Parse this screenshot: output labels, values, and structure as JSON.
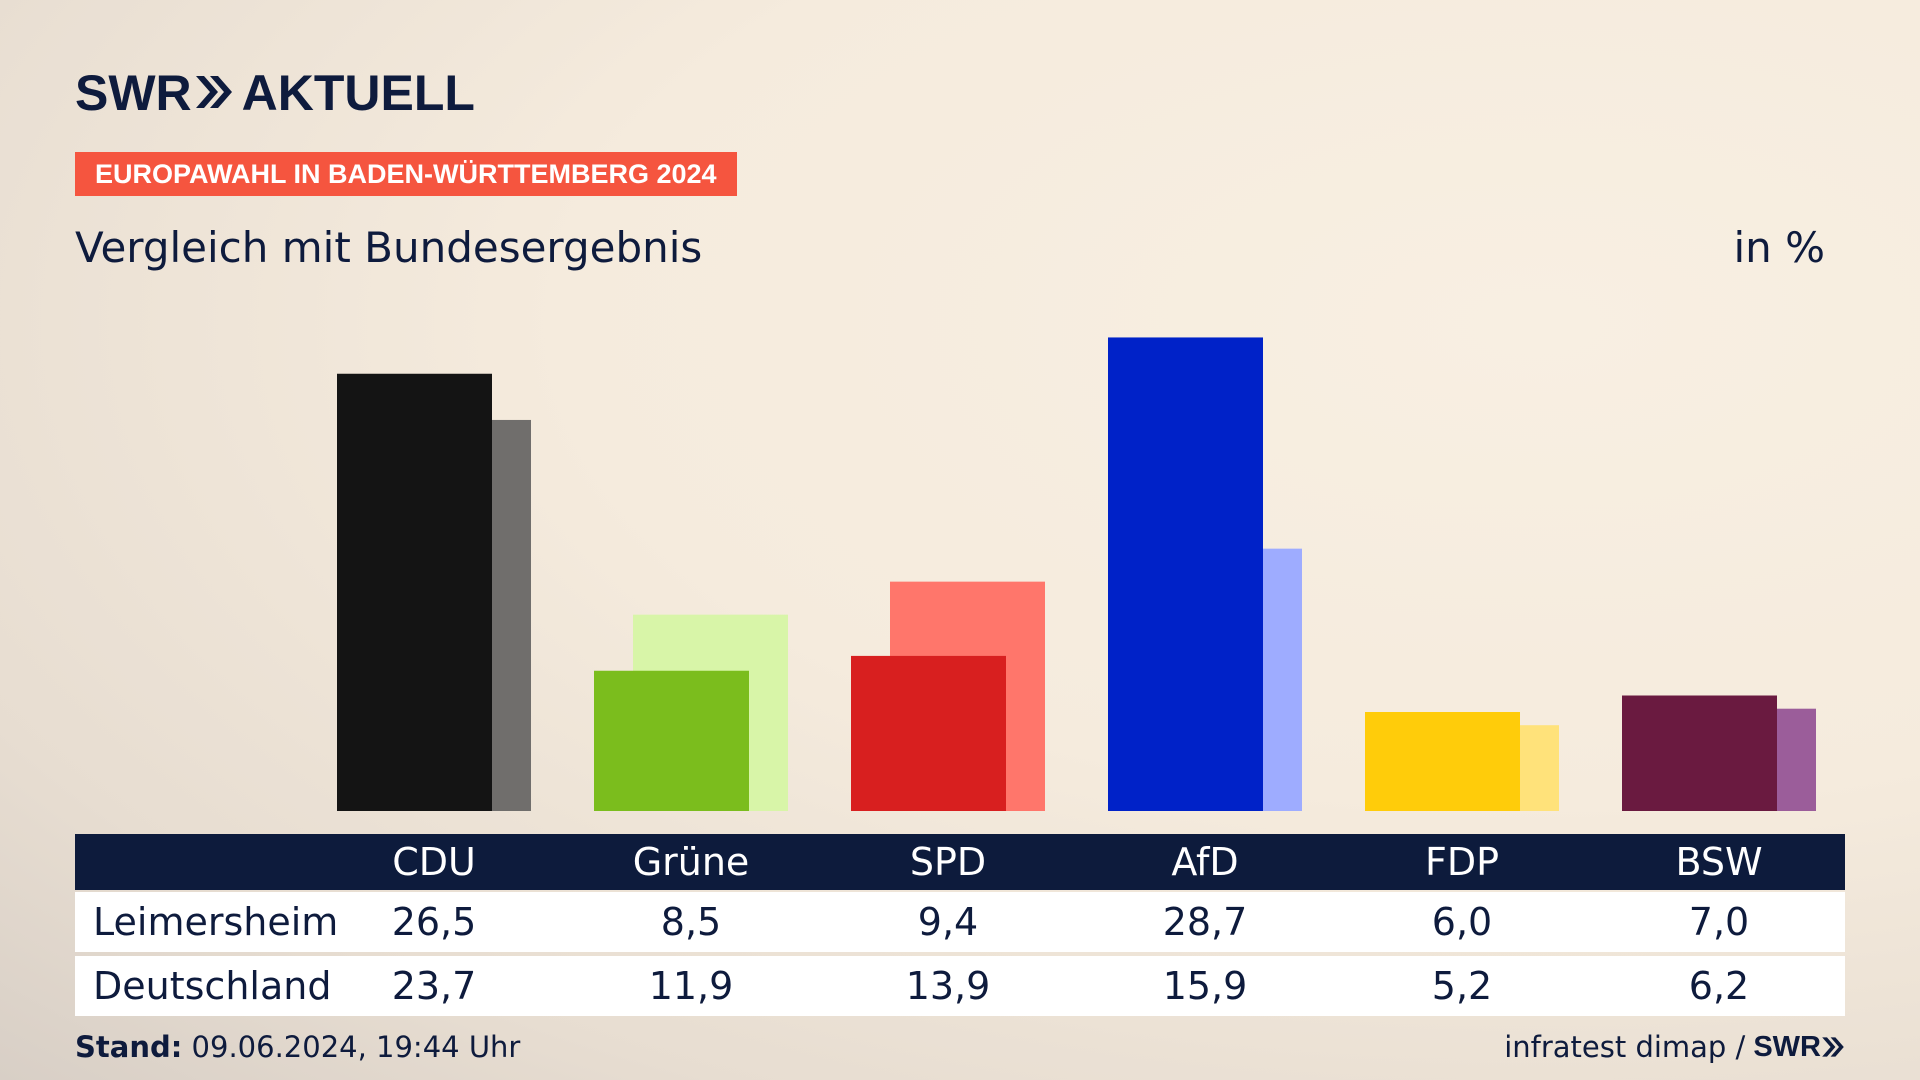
{
  "brand": {
    "logo_text": "SWR",
    "logo_suffix": "AKTUELL",
    "source_brand": "SWR",
    "chevron_icon": "double-chevron-right-icon"
  },
  "header": {
    "badge": "EUROPAWAHL IN BADEN-WÜRTTEMBERG 2024",
    "badge_color": "#f5553f",
    "title": "Vergleich mit Bundesergebnis",
    "unit": "in %"
  },
  "table": {
    "rows": [
      {
        "label": "Leimersheim"
      },
      {
        "label": "Deutschland"
      }
    ]
  },
  "footer": {
    "stand_label": "Stand:",
    "stand_value": "09.06.2024, 19:44 Uhr",
    "source": "infratest dimap /"
  },
  "chart_data": {
    "type": "bar",
    "title": "Vergleich mit Bundesergebnis",
    "unit": "in %",
    "categories": [
      "CDU",
      "Grüne",
      "SPD",
      "AfD",
      "FDP",
      "BSW"
    ],
    "series": [
      {
        "name": "Leimersheim",
        "values": [
          26.5,
          8.5,
          9.4,
          28.7,
          6.0,
          7.0
        ],
        "value_labels": [
          "26,5",
          "8,5",
          "9,4",
          "28,7",
          "6,0",
          "7,0"
        ]
      },
      {
        "name": "Deutschland",
        "values": [
          23.7,
          11.9,
          13.9,
          15.9,
          5.2,
          6.2
        ],
        "value_labels": [
          "23,7",
          "11,9",
          "13,9",
          "15,9",
          "5,2",
          "6,2"
        ]
      }
    ],
    "colors_primary": [
      "#141414",
      "#7bbd1d",
      "#d81f1f",
      "#0022c8",
      "#ffcc0a",
      "#6a1a40"
    ],
    "colors_secondary": [
      "#706e6c",
      "#d8f5a8",
      "#ff766b",
      "#9eacff",
      "#ffe27a",
      "#9b5d9a"
    ],
    "ylim": [
      0,
      30
    ],
    "grid": false,
    "legend": "table-below"
  }
}
